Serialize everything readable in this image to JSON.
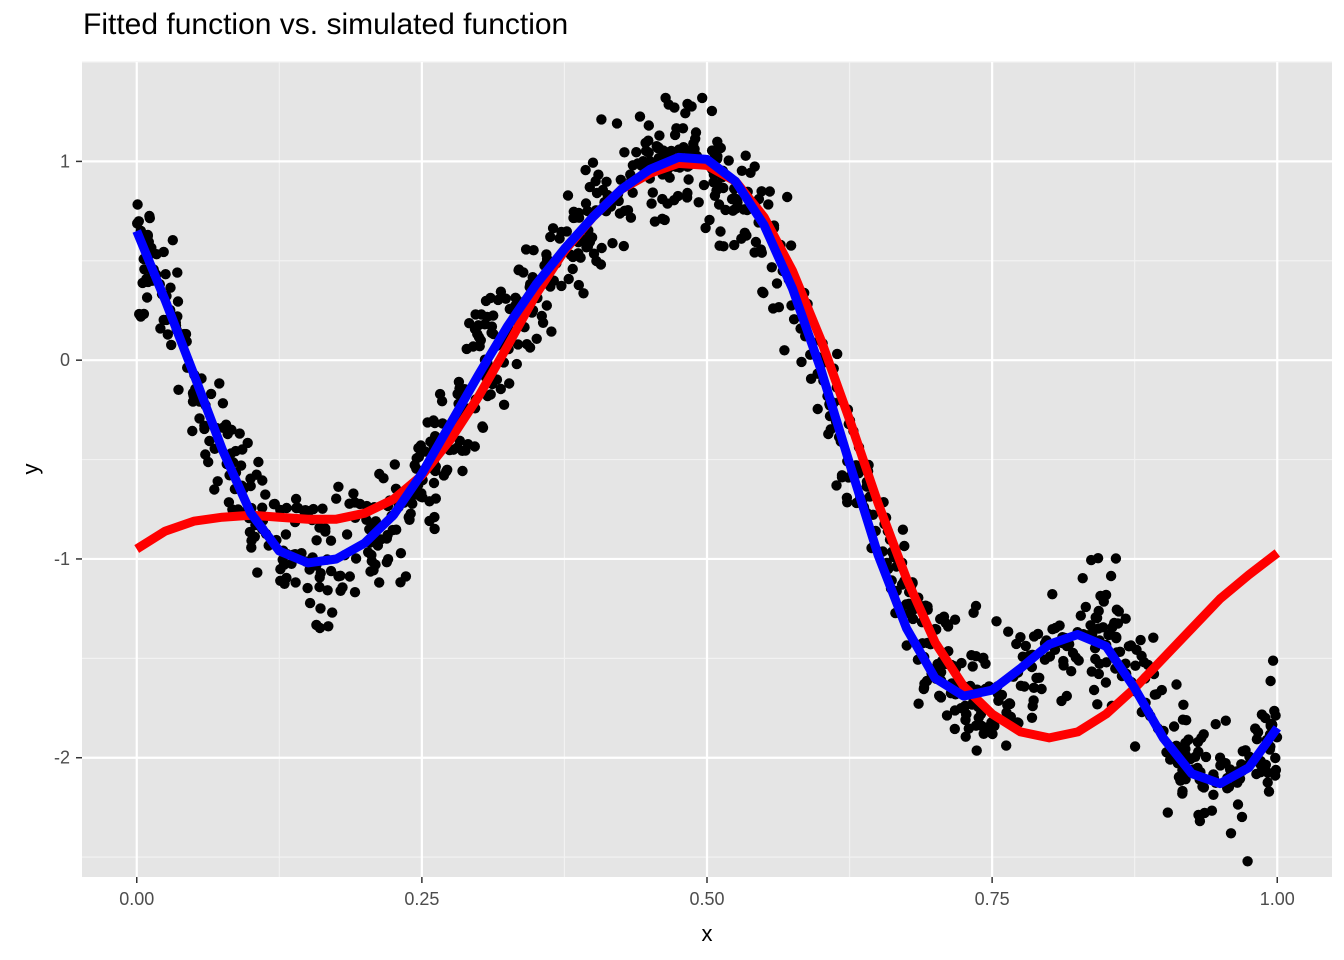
{
  "chart_data": {
    "type": "scatter",
    "title": "Fitted function vs. simulated function",
    "xlabel": "x",
    "ylabel": "y",
    "xlim": [
      -0.048,
      1.048
    ],
    "ylim": [
      -2.6,
      1.5
    ],
    "x_ticks": [
      0.0,
      0.25,
      0.5,
      0.75,
      1.0
    ],
    "x_tick_labels": [
      "0.00",
      "0.25",
      "0.50",
      "0.75",
      "1.00"
    ],
    "y_ticks": [
      -2,
      -1,
      0,
      1
    ],
    "y_tick_labels": [
      "-2",
      "-1",
      "0",
      "1"
    ],
    "grid": true,
    "background": "#e5e5e5",
    "series": [
      {
        "kind": "points",
        "color": "#000000",
        "note_generator": {
          "n": 1000,
          "seed": 7,
          "noise_sd": 0.16
        },
        "anchors_x": [
          0.0,
          0.03,
          0.06,
          0.09,
          0.12,
          0.15,
          0.18,
          0.21,
          0.24,
          0.27,
          0.3,
          0.33,
          0.36,
          0.39,
          0.42,
          0.45,
          0.48,
          0.51,
          0.54,
          0.57,
          0.6,
          0.63,
          0.66,
          0.69,
          0.72,
          0.75,
          0.78,
          0.81,
          0.84,
          0.87,
          0.9,
          0.93,
          0.96,
          0.99,
          1.0
        ],
        "anchors_y": [
          0.65,
          0.25,
          -0.2,
          -0.6,
          -0.9,
          -1.0,
          -1.0,
          -0.9,
          -0.7,
          -0.4,
          -0.05,
          0.25,
          0.45,
          0.65,
          0.85,
          0.97,
          1.02,
          0.95,
          0.75,
          0.4,
          -0.05,
          -0.55,
          -1.0,
          -1.4,
          -1.65,
          -1.72,
          -1.6,
          -1.45,
          -1.35,
          -1.5,
          -1.8,
          -2.05,
          -2.1,
          -1.9,
          -1.85
        ]
      },
      {
        "kind": "line",
        "name": "",
        "color": "#ff0000",
        "x": [
          0.0,
          0.025,
          0.05,
          0.075,
          0.1,
          0.125,
          0.15,
          0.175,
          0.2,
          0.225,
          0.25,
          0.275,
          0.3,
          0.325,
          0.35,
          0.375,
          0.4,
          0.425,
          0.45,
          0.475,
          0.5,
          0.525,
          0.55,
          0.575,
          0.6,
          0.625,
          0.65,
          0.675,
          0.7,
          0.725,
          0.75,
          0.775,
          0.8,
          0.825,
          0.85,
          0.875,
          0.9,
          0.925,
          0.95,
          0.975,
          1.0
        ],
        "y": [
          -0.95,
          -0.86,
          -0.81,
          -0.79,
          -0.78,
          -0.79,
          -0.8,
          -0.8,
          -0.77,
          -0.7,
          -0.58,
          -0.4,
          -0.18,
          0.07,
          0.33,
          0.55,
          0.72,
          0.86,
          0.94,
          0.99,
          0.98,
          0.9,
          0.72,
          0.45,
          0.1,
          -0.3,
          -0.72,
          -1.1,
          -1.42,
          -1.64,
          -1.78,
          -1.87,
          -1.9,
          -1.87,
          -1.78,
          -1.65,
          -1.5,
          -1.35,
          -1.2,
          -1.08,
          -0.97
        ]
      },
      {
        "kind": "line",
        "name": "",
        "color": "#0000ff",
        "x": [
          0.0,
          0.025,
          0.05,
          0.075,
          0.1,
          0.125,
          0.15,
          0.175,
          0.2,
          0.225,
          0.25,
          0.275,
          0.3,
          0.325,
          0.35,
          0.375,
          0.4,
          0.425,
          0.45,
          0.475,
          0.5,
          0.525,
          0.55,
          0.575,
          0.6,
          0.625,
          0.65,
          0.675,
          0.7,
          0.725,
          0.75,
          0.775,
          0.8,
          0.825,
          0.85,
          0.875,
          0.9,
          0.925,
          0.95,
          0.975,
          1.0
        ],
        "y": [
          0.65,
          0.3,
          -0.07,
          -0.45,
          -0.77,
          -0.96,
          -1.02,
          -1.0,
          -0.92,
          -0.78,
          -0.57,
          -0.32,
          -0.07,
          0.17,
          0.38,
          0.56,
          0.72,
          0.86,
          0.96,
          1.02,
          1.01,
          0.9,
          0.68,
          0.36,
          -0.05,
          -0.52,
          -0.98,
          -1.35,
          -1.6,
          -1.69,
          -1.66,
          -1.55,
          -1.43,
          -1.38,
          -1.44,
          -1.65,
          -1.9,
          -2.08,
          -2.13,
          -2.05,
          -1.85
        ]
      }
    ]
  }
}
